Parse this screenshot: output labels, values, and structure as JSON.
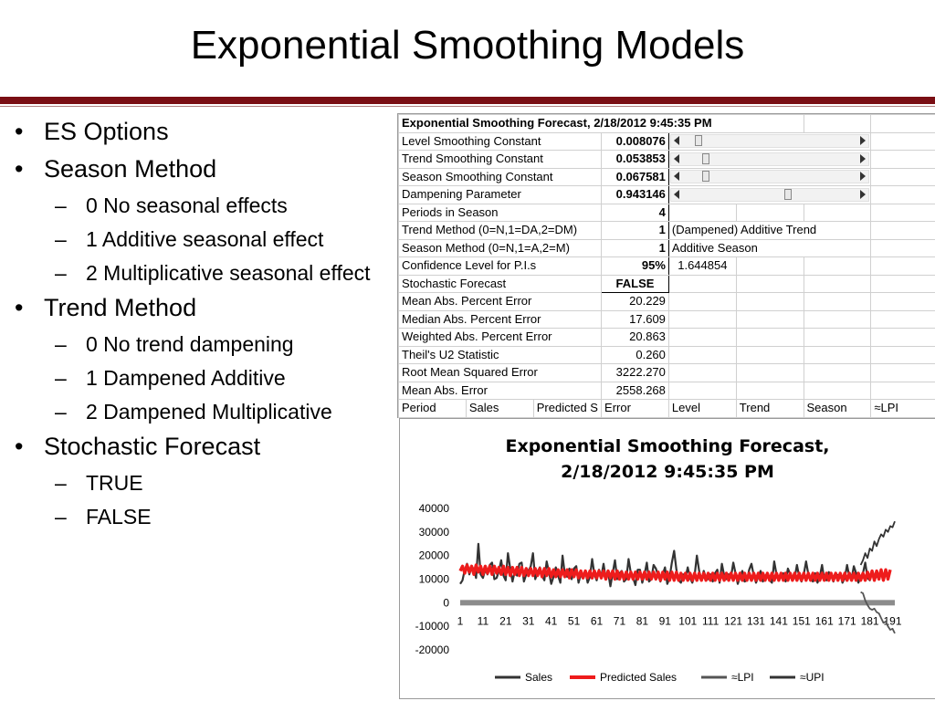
{
  "slide": {
    "title": "Exponential Smoothing Models"
  },
  "bullets": [
    {
      "text": "ES Options",
      "subs": []
    },
    {
      "text": "Season Method",
      "subs": [
        "0 No seasonal effects",
        "1 Additive seasonal effect",
        "2 Multiplicative seasonal effect"
      ]
    },
    {
      "text": "Trend Method",
      "subs": [
        "0 No trend dampening",
        "1 Dampened Additive",
        "2 Dampened Multiplicative"
      ]
    },
    {
      "text": "Stochastic Forecast",
      "subs": [
        "TRUE",
        "FALSE"
      ]
    }
  ],
  "sheet": {
    "header": "Exponential Smoothing Forecast, 2/18/2012 9:45:35 PM",
    "params": [
      {
        "label": "Level Smoothing Constant",
        "value": "0.008076",
        "slider": 0.08
      },
      {
        "label": "Trend Smoothing Constant",
        "value": "0.053853",
        "slider": 0.12
      },
      {
        "label": "Season Smoothing Constant",
        "value": "0.067581",
        "slider": 0.12
      },
      {
        "label": "Dampening Parameter",
        "value": "0.943146",
        "slider": 0.62
      },
      {
        "label": "Periods in Season",
        "value": "4"
      },
      {
        "label": "Trend Method (0=N,1=DA,2=DM)",
        "value": "1",
        "note": "(Dampened) Additive Trend"
      },
      {
        "label": "Season Method (0=N,1=A,2=M)",
        "value": "1",
        "note": "Additive Season"
      },
      {
        "label": "Confidence Level for P.I.s",
        "value": "95%",
        "note": "1.644854"
      },
      {
        "label": "Stochastic Forecast",
        "value": "FALSE"
      }
    ],
    "stats": [
      {
        "label": "Mean Abs. Percent Error",
        "value": "20.229"
      },
      {
        "label": "Median Abs. Percent Error",
        "value": "17.609"
      },
      {
        "label": "Weighted Abs. Percent Error",
        "value": "20.863"
      },
      {
        "label": "Theil's U2 Statistic",
        "value": "0.260"
      },
      {
        "label": "Root Mean Squared Error",
        "value": "3222.270"
      },
      {
        "label": "Mean Abs. Error",
        "value": "2558.268"
      }
    ],
    "columns": [
      "Period",
      "Sales",
      "Predicted S",
      "Error",
      "Level",
      "Trend",
      "Season",
      "≈LPI"
    ]
  },
  "chart_data": {
    "type": "line",
    "title_lines": [
      "Exponential Smoothing Forecast,",
      "2/18/2012 9:45:35 PM"
    ],
    "ylim": [
      -20000,
      40000
    ],
    "yticks": [
      "40000",
      "30000",
      "20000",
      "10000",
      "0",
      "-10000",
      "-20000"
    ],
    "xtick_labels": [
      "1",
      "11",
      "21",
      "31",
      "41",
      "51",
      "61",
      "71",
      "81",
      "91",
      "101",
      "111",
      "121",
      "131",
      "141",
      "151",
      "161",
      "171",
      "181",
      "191"
    ],
    "grid": false,
    "legend_position": "bottom",
    "series": [
      {
        "name": "Sales",
        "color": "#333333",
        "values": [
          8000,
          9500,
          14000,
          16500,
          12000,
          15000,
          14500,
          10500,
          25000,
          12000,
          10500,
          14000,
          12000,
          16000,
          17000,
          10000,
          10500,
          13500,
          18000,
          11500,
          9500,
          21000,
          14500,
          9000,
          13500,
          11500,
          16500,
          17000,
          9000,
          12000,
          13500,
          15500,
          21000,
          10000,
          13000,
          15000,
          11500,
          9500,
          17500,
          13000,
          8000,
          11000,
          15000,
          11500,
          8500,
          20000,
          12000,
          11000,
          14500,
          10000,
          14500,
          15500,
          8500,
          12000,
          11500,
          13500,
          8500,
          11000,
          18500,
          12000,
          9500,
          14000,
          11000,
          16500,
          10000,
          13000,
          7000,
          12500,
          18000,
          10000,
          12500,
          13500,
          9000,
          10000,
          18500,
          12500,
          10500,
          7500,
          14000,
          14000,
          8500,
          12000,
          17000,
          9000,
          10000,
          16000,
          14500,
          11500,
          9000,
          12000,
          15000,
          8000,
          10500,
          17000,
          22000,
          14000,
          9500,
          8500,
          12000,
          10500,
          15000,
          10500,
          8500,
          11500,
          20000,
          13500,
          9500,
          13500,
          10500,
          10000,
          12000,
          9000,
          12500,
          14000,
          8500,
          16500,
          11500,
          10000,
          12000,
          11000,
          17000,
          12500,
          8000,
          11000,
          13500,
          9000,
          9500,
          14000,
          16500,
          11500,
          8500,
          11000,
          13500,
          9000,
          11500,
          12000,
          9500,
          8500,
          17500,
          12000,
          9500,
          11500,
          12500,
          9000,
          14500,
          12000,
          10000,
          10500,
          16000,
          11000,
          9000,
          12000,
          17500,
          12000,
          10500,
          9000,
          12500,
          8500,
          11000,
          16000,
          10000,
          9500,
          13000,
          11500,
          9000,
          12500,
          11500,
          12000,
          8500,
          10500,
          16000,
          11000,
          10000,
          15500,
          12500,
          8500,
          11000,
          12500,
          17000,
          10500,
          9500,
          13500,
          11500,
          10500
        ]
      },
      {
        "name": "Predicted Sales",
        "color": "#ee1c1c",
        "values": [
          13500,
          15500,
          12500,
          16000,
          13000,
          15500,
          12000,
          16000,
          13000,
          15500,
          12000,
          15500,
          12500,
          15500,
          12000,
          15500,
          12500,
          15000,
          12000,
          15500,
          12000,
          15000,
          11500,
          15000,
          12000,
          15000,
          11500,
          15000,
          11500,
          14500,
          11500,
          14500,
          11500,
          14500,
          11500,
          14500,
          11000,
          14500,
          11500,
          14500,
          11000,
          14000,
          11000,
          14000,
          11000,
          14000,
          11000,
          14000,
          10500,
          14000,
          11000,
          14000,
          10500,
          13500,
          10500,
          13500,
          10500,
          13500,
          10500,
          13500,
          10500,
          13500,
          10500,
          13500,
          10000,
          13500,
          10500,
          13500,
          10000,
          13500,
          10000,
          13000,
          10000,
          13000,
          10000,
          13000,
          10000,
          13000,
          10000,
          13000,
          10000,
          13000,
          10000,
          13000,
          10000,
          13000,
          10000,
          13000,
          9500,
          13000,
          10000,
          13000,
          9500,
          13000,
          9500,
          13000,
          9500,
          12500,
          9500,
          12500,
          9500,
          12500,
          9500,
          12500,
          9500,
          12500,
          9500,
          12500,
          9500,
          12500,
          9500,
          12500,
          9500,
          12500,
          9500,
          12500,
          9500,
          12500,
          9500,
          12500,
          9500,
          12500,
          9500,
          12500,
          9500,
          12500,
          9500,
          12500,
          9500,
          12500,
          9500,
          12500,
          9500,
          12500,
          9500,
          12500,
          9500,
          12500,
          9500,
          12500,
          9500,
          12500,
          9500,
          12500,
          9500,
          12500,
          9500,
          12500,
          9500,
          12500,
          9500,
          12500,
          9500,
          12500,
          9500,
          12500,
          9500,
          12500,
          9500,
          12500,
          9500,
          12500,
          9500,
          12500,
          9500,
          12500,
          9500,
          12500,
          9500,
          12500,
          9500,
          12500,
          9500,
          12500,
          9500,
          12500,
          9500,
          12500,
          9500,
          13000,
          10000,
          13500,
          9500,
          13500,
          10000,
          14000,
          9500,
          14000,
          10000,
          14000
        ]
      },
      {
        "name": "≈LPI",
        "color": "#555555",
        "x_start": 176,
        "values": [
          4500,
          4000,
          1000,
          -1000,
          -2500,
          -3000,
          -2500,
          -4000,
          -4500,
          -6500,
          -8500,
          -8000,
          -10000,
          -11500,
          -11000,
          -13000
        ]
      },
      {
        "name": "≈UPI",
        "color": "#333333",
        "x_start": 176,
        "values": [
          16000,
          18000,
          21000,
          19000,
          23000,
          22000,
          26000,
          24000,
          27000,
          29000,
          28000,
          31000,
          30000,
          32500,
          32000,
          34500
        ]
      }
    ]
  }
}
